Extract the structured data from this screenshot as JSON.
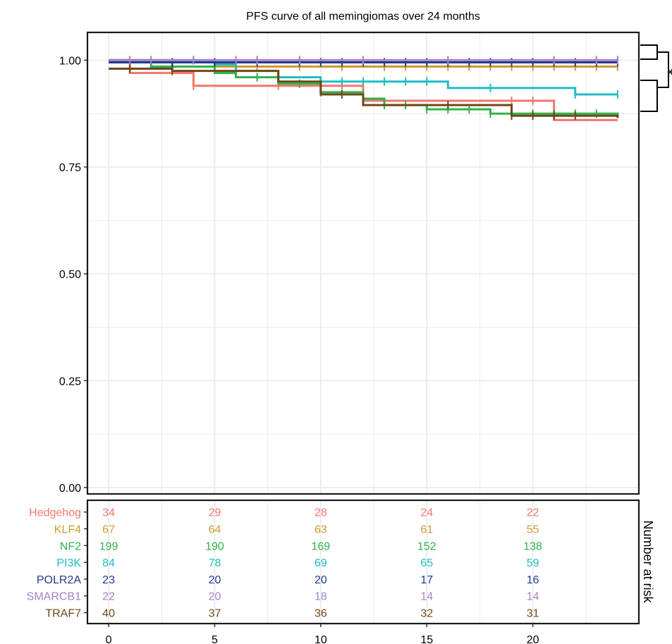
{
  "chart_data": {
    "type": "line",
    "title": "PFS curve of all memingiomas over 24 months",
    "xlim": [
      -1,
      25
    ],
    "ylim": [
      -0.015,
      1.065
    ],
    "x_ticks": [
      0,
      5,
      10,
      15,
      20
    ],
    "x_tick_labels": [
      "0",
      "5",
      "10",
      "15",
      "20"
    ],
    "y_ticks": [
      0,
      0.25,
      0.5,
      0.75,
      1
    ],
    "y_tick_labels": [
      "0.00",
      "0.25",
      "0.50",
      "0.75",
      "1.00"
    ],
    "grid": true,
    "significance_label": "*",
    "series": [
      {
        "name": "Hedgehog",
        "color": "#F2766E",
        "steps": [
          [
            0,
            1.0
          ],
          [
            1,
            0.97
          ],
          [
            4,
            0.94
          ],
          [
            12,
            0.905
          ],
          [
            21,
            0.86
          ],
          [
            24,
            0.86
          ]
        ],
        "censor_x": [
          4,
          8,
          11,
          19,
          20
        ],
        "risk_counts": [
          34,
          29,
          28,
          24,
          22
        ]
      },
      {
        "name": "KLF4",
        "color": "#CD9A2E",
        "steps": [
          [
            0,
            1.0
          ],
          [
            3,
            0.985
          ],
          [
            24,
            0.985
          ]
        ],
        "censor_x": [
          7,
          9,
          11,
          13,
          14,
          15,
          16,
          17,
          18,
          19,
          20,
          21,
          22,
          23,
          24
        ],
        "risk_counts": [
          67,
          64,
          63,
          61,
          55
        ]
      },
      {
        "name": "NF2",
        "color": "#2FB24A",
        "steps": [
          [
            0,
            1.0
          ],
          [
            2,
            0.985
          ],
          [
            5,
            0.97
          ],
          [
            6,
            0.96
          ],
          [
            8,
            0.945
          ],
          [
            10,
            0.925
          ],
          [
            12,
            0.91
          ],
          [
            13,
            0.895
          ],
          [
            15,
            0.885
          ],
          [
            18,
            0.875
          ],
          [
            24,
            0.865
          ]
        ],
        "censor_x": [
          3,
          7,
          9,
          10,
          13,
          14,
          15,
          16,
          17,
          18,
          19,
          20,
          21,
          22,
          23
        ],
        "risk_counts": [
          199,
          190,
          169,
          152,
          138
        ]
      },
      {
        "name": "PI3K",
        "color": "#1DBDC3",
        "steps": [
          [
            0,
            1.0
          ],
          [
            5,
            0.99
          ],
          [
            6,
            0.975
          ],
          [
            8,
            0.96
          ],
          [
            10,
            0.95
          ],
          [
            16,
            0.935
          ],
          [
            22,
            0.92
          ],
          [
            24,
            0.92
          ]
        ],
        "censor_x": [
          4,
          11,
          12,
          13,
          14,
          15,
          18,
          22,
          24
        ],
        "risk_counts": [
          84,
          78,
          69,
          65,
          59
        ]
      },
      {
        "name": "POLR2A",
        "color": "#223A8F",
        "steps": [
          [
            0,
            0.995
          ],
          [
            24,
            0.995
          ]
        ],
        "censor_x": [
          3,
          5,
          7,
          9,
          10,
          11,
          12,
          13,
          14,
          15,
          16,
          17,
          18,
          19,
          20,
          21,
          22,
          23,
          24
        ],
        "risk_counts": [
          23,
          20,
          20,
          17,
          16
        ]
      },
      {
        "name": "SMARCB1",
        "color": "#A581C7",
        "steps": [
          [
            0,
            1.0
          ],
          [
            24,
            1.0
          ]
        ],
        "censor_x": [
          1,
          2,
          4,
          6,
          7,
          9,
          12,
          16,
          21,
          23,
          24
        ],
        "risk_counts": [
          22,
          20,
          18,
          14,
          14
        ]
      },
      {
        "name": "TRAF7",
        "color": "#6F4816",
        "steps": [
          [
            0,
            0.98
          ],
          [
            3,
            0.975
          ],
          [
            8,
            0.95
          ],
          [
            10,
            0.92
          ],
          [
            12,
            0.895
          ],
          [
            19,
            0.87
          ],
          [
            24,
            0.865
          ]
        ],
        "censor_x": [
          1,
          3,
          11,
          16,
          19,
          20,
          21,
          22
        ],
        "risk_counts": [
          40,
          37,
          36,
          32,
          31
        ]
      }
    ],
    "risk_table": {
      "side_label": "Number at risk",
      "times": [
        0,
        5,
        10,
        15,
        20
      ]
    }
  }
}
